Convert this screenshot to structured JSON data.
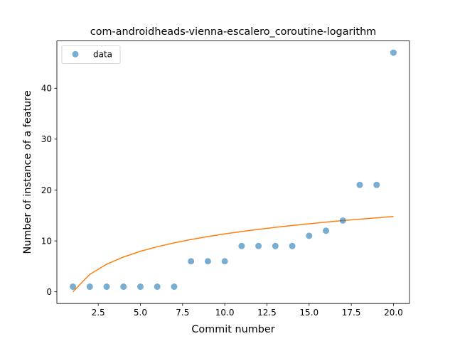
{
  "chart_data": {
    "type": "scatter",
    "title": "com-androidheads-vienna-escalero_coroutine-logarithm",
    "xlabel": "Commit number",
    "ylabel": "Number of instance of a feature",
    "xlim": [
      0.05,
      20.95
    ],
    "ylim": [
      -2.3,
      49.3
    ],
    "x_ticks": [
      2.5,
      5.0,
      7.5,
      10.0,
      12.5,
      15.0,
      17.5,
      20.0
    ],
    "x_tick_labels": [
      "2.5",
      "5.0",
      "7.5",
      "10.0",
      "12.5",
      "15.0",
      "17.5",
      "20.0"
    ],
    "y_ticks": [
      0,
      10,
      20,
      30,
      40
    ],
    "y_tick_labels": [
      "0",
      "10",
      "20",
      "30",
      "40"
    ],
    "grid": false,
    "legend_position": "upper-left",
    "series": [
      {
        "name": "data",
        "kind": "scatter",
        "color": "#1f77b4",
        "x": [
          1,
          2,
          3,
          4,
          5,
          6,
          7,
          8,
          9,
          10,
          11,
          12,
          13,
          14,
          15,
          16,
          17,
          18,
          19,
          20
        ],
        "y": [
          1,
          1,
          1,
          1,
          1,
          1,
          1,
          6,
          6,
          6,
          9,
          9,
          9,
          9,
          11,
          12,
          14,
          21,
          21,
          47
        ]
      },
      {
        "kind": "line",
        "color": "#ff7f0e",
        "x": [
          1,
          2,
          3,
          4,
          5,
          6,
          7,
          8,
          9,
          10,
          11,
          12,
          13,
          14,
          15,
          16,
          17,
          18,
          19,
          20
        ],
        "y": [
          0.0,
          3.42,
          5.42,
          6.84,
          7.95,
          8.85,
          9.61,
          10.27,
          10.85,
          11.37,
          11.84,
          12.27,
          12.66,
          13.03,
          13.37,
          13.69,
          13.99,
          14.27,
          14.54,
          14.79
        ]
      }
    ]
  }
}
